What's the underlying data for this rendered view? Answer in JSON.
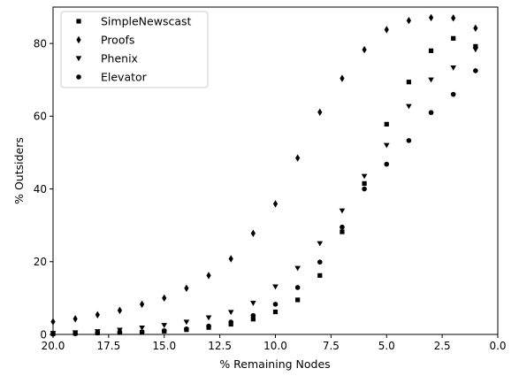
{
  "chart_data": {
    "type": "scatter",
    "xlabel": "% Remaining Nodes",
    "ylabel": "% Outsiders",
    "xlim": [
      20.0,
      0.0
    ],
    "ylim": [
      0,
      90
    ],
    "x_inverted": true,
    "xticks": [
      20.0,
      17.5,
      15.0,
      12.5,
      10.0,
      7.5,
      5.0,
      2.5,
      0.0
    ],
    "xtick_labels": [
      "20.0",
      "17.5",
      "15.0",
      "12.5",
      "10.0",
      "7.5",
      "5.0",
      "2.5",
      "0.0"
    ],
    "yticks": [
      0,
      20,
      40,
      60,
      80
    ],
    "ytick_labels": [
      "0",
      "20",
      "40",
      "60",
      "80"
    ],
    "grid": false,
    "legend_position": "top-left",
    "series": [
      {
        "name": "SimpleNewscast",
        "marker": "square",
        "color": "#000000",
        "x": [
          20,
          19,
          18,
          17,
          16,
          15,
          14,
          13,
          12,
          11,
          10,
          9,
          8,
          7,
          6,
          5,
          4,
          3,
          2,
          1
        ],
        "y": [
          0.2,
          0.3,
          0.4,
          0.5,
          0.6,
          0.9,
          1.3,
          1.9,
          2.8,
          4.2,
          6.2,
          9.5,
          16.2,
          28.2,
          41.5,
          57.8,
          69.4,
          78.0,
          81.4,
          79.2
        ]
      },
      {
        "name": "Proofs",
        "marker": "diamond",
        "color": "#000000",
        "x": [
          20,
          19,
          18,
          17,
          16,
          15,
          14,
          13,
          12,
          11,
          10,
          9,
          8,
          7,
          6,
          5,
          4,
          3,
          2,
          1
        ],
        "y": [
          3.5,
          4.3,
          5.4,
          6.6,
          8.3,
          10.0,
          12.7,
          16.2,
          20.8,
          27.8,
          35.9,
          48.5,
          61.1,
          70.4,
          78.3,
          83.8,
          86.3,
          87.1,
          87.0,
          84.2
        ]
      },
      {
        "name": "Phenix",
        "marker": "triangle-down",
        "color": "#000000",
        "x": [
          20,
          19,
          18,
          17,
          16,
          15,
          14,
          13,
          12,
          11,
          10,
          9,
          8,
          7,
          6,
          5,
          4,
          3,
          2,
          1
        ],
        "y": [
          0.3,
          0.5,
          0.8,
          1.2,
          1.8,
          2.5,
          3.4,
          4.6,
          6.1,
          8.6,
          13.1,
          18.2,
          25.0,
          34.0,
          43.5,
          52.0,
          62.7,
          70.0,
          73.3,
          78.3
        ]
      },
      {
        "name": "Elevator",
        "marker": "circle",
        "color": "#000000",
        "x": [
          20,
          19,
          18,
          17,
          16,
          15,
          14,
          13,
          12,
          11,
          10,
          9,
          8,
          7,
          6,
          5,
          4,
          3,
          2,
          1
        ],
        "y": [
          0.1,
          0.2,
          0.4,
          0.5,
          0.7,
          1.0,
          1.5,
          2.3,
          3.4,
          5.2,
          8.3,
          12.9,
          19.9,
          29.5,
          40.0,
          46.8,
          53.3,
          61.0,
          66.0,
          72.5
        ]
      }
    ]
  }
}
